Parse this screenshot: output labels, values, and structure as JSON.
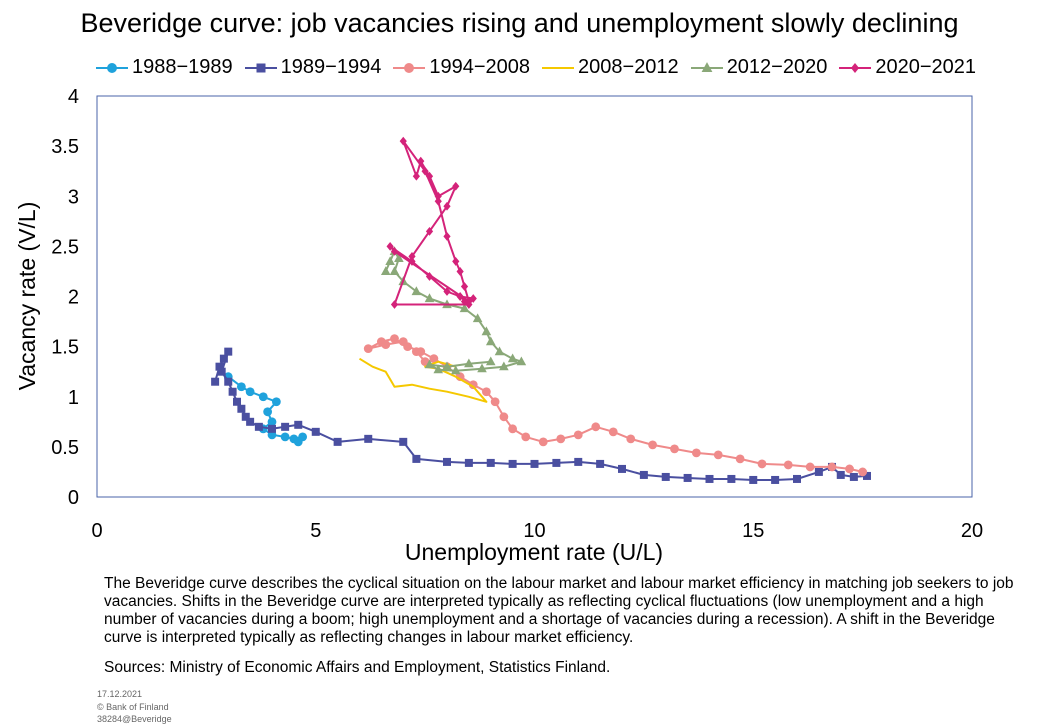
{
  "chart_data": {
    "type": "line",
    "title": "Beveridge curve: job vacancies rising and unemployment slowly declining",
    "xlabel": "Unemployment rate (U/L)",
    "ylabel": "Vacancy rate (V/L)",
    "xlim": [
      0,
      20
    ],
    "ylim": [
      0,
      4
    ],
    "xticks": [
      "0",
      "5",
      "10",
      "15",
      "20"
    ],
    "yticks": [
      "0",
      "0.5",
      "1",
      "1.5",
      "2",
      "2.5",
      "3",
      "3.5",
      "4"
    ],
    "grid": false,
    "legend_position": "top",
    "series": [
      {
        "name": "1988−1989",
        "color": "#1fa2dc",
        "marker": "circle",
        "points": [
          [
            3.0,
            1.2
          ],
          [
            3.3,
            1.1
          ],
          [
            3.5,
            1.05
          ],
          [
            3.8,
            1.0
          ],
          [
            4.1,
            0.95
          ],
          [
            3.9,
            0.85
          ],
          [
            4.0,
            0.75
          ],
          [
            3.8,
            0.68
          ],
          [
            4.0,
            0.62
          ],
          [
            4.3,
            0.6
          ],
          [
            4.5,
            0.58
          ],
          [
            4.7,
            0.6
          ],
          [
            4.6,
            0.55
          ]
        ]
      },
      {
        "name": "1989−1994",
        "color": "#4a4fa0",
        "marker": "square",
        "points": [
          [
            2.7,
            1.15
          ],
          [
            2.8,
            1.3
          ],
          [
            2.9,
            1.38
          ],
          [
            3.0,
            1.45
          ],
          [
            2.85,
            1.25
          ],
          [
            3.0,
            1.15
          ],
          [
            3.1,
            1.05
          ],
          [
            3.2,
            0.95
          ],
          [
            3.3,
            0.88
          ],
          [
            3.4,
            0.8
          ],
          [
            3.5,
            0.75
          ],
          [
            3.7,
            0.7
          ],
          [
            4.0,
            0.68
          ],
          [
            4.3,
            0.7
          ],
          [
            4.6,
            0.72
          ],
          [
            5.0,
            0.65
          ],
          [
            5.5,
            0.55
          ],
          [
            6.2,
            0.58
          ],
          [
            7.0,
            0.55
          ],
          [
            7.3,
            0.38
          ],
          [
            8.0,
            0.35
          ],
          [
            8.5,
            0.34
          ],
          [
            9.0,
            0.34
          ],
          [
            9.5,
            0.33
          ],
          [
            10.0,
            0.33
          ],
          [
            10.5,
            0.34
          ],
          [
            11.0,
            0.35
          ],
          [
            11.5,
            0.33
          ],
          [
            12.0,
            0.28
          ],
          [
            12.5,
            0.22
          ],
          [
            13.0,
            0.2
          ],
          [
            13.5,
            0.19
          ],
          [
            14.0,
            0.18
          ],
          [
            14.5,
            0.18
          ],
          [
            15.0,
            0.17
          ],
          [
            15.5,
            0.17
          ],
          [
            16.0,
            0.18
          ],
          [
            16.5,
            0.25
          ],
          [
            16.8,
            0.3
          ],
          [
            17.0,
            0.22
          ],
          [
            17.3,
            0.2
          ],
          [
            17.6,
            0.21
          ]
        ]
      },
      {
        "name": "1994−2008",
        "color": "#ef8a8a",
        "marker": "circle",
        "points": [
          [
            17.5,
            0.25
          ],
          [
            17.2,
            0.28
          ],
          [
            16.8,
            0.3
          ],
          [
            16.3,
            0.3
          ],
          [
            15.8,
            0.32
          ],
          [
            15.2,
            0.33
          ],
          [
            14.7,
            0.38
          ],
          [
            14.2,
            0.42
          ],
          [
            13.7,
            0.44
          ],
          [
            13.2,
            0.48
          ],
          [
            12.7,
            0.52
          ],
          [
            12.2,
            0.58
          ],
          [
            11.8,
            0.65
          ],
          [
            11.4,
            0.7
          ],
          [
            11.0,
            0.62
          ],
          [
            10.6,
            0.58
          ],
          [
            10.2,
            0.55
          ],
          [
            9.8,
            0.6
          ],
          [
            9.5,
            0.68
          ],
          [
            9.3,
            0.8
          ],
          [
            9.1,
            0.95
          ],
          [
            8.9,
            1.05
          ],
          [
            8.6,
            1.12
          ],
          [
            8.3,
            1.2
          ],
          [
            8.0,
            1.3
          ],
          [
            7.7,
            1.38
          ],
          [
            7.4,
            1.45
          ],
          [
            7.1,
            1.5
          ],
          [
            6.8,
            1.58
          ],
          [
            6.5,
            1.55
          ],
          [
            6.2,
            1.48
          ],
          [
            6.6,
            1.52
          ],
          [
            7.0,
            1.55
          ],
          [
            7.3,
            1.45
          ],
          [
            7.5,
            1.35
          ]
        ]
      },
      {
        "name": "2008−2012",
        "color": "#f5c800",
        "marker": "none",
        "points": [
          [
            6.0,
            1.38
          ],
          [
            6.3,
            1.3
          ],
          [
            6.6,
            1.25
          ],
          [
            6.8,
            1.1
          ],
          [
            7.2,
            1.12
          ],
          [
            7.6,
            1.08
          ],
          [
            8.0,
            1.05
          ],
          [
            8.5,
            1.0
          ],
          [
            8.9,
            0.95
          ],
          [
            8.6,
            1.1
          ],
          [
            8.2,
            1.2
          ],
          [
            7.8,
            1.28
          ],
          [
            7.5,
            1.3
          ],
          [
            7.8,
            1.35
          ],
          [
            8.2,
            1.3
          ]
        ]
      },
      {
        "name": "2012−2020",
        "color": "#8aa878",
        "marker": "triangle",
        "points": [
          [
            6.6,
            2.25
          ],
          [
            6.7,
            2.35
          ],
          [
            6.8,
            2.45
          ],
          [
            6.9,
            2.38
          ],
          [
            6.8,
            2.25
          ],
          [
            7.0,
            2.15
          ],
          [
            7.3,
            2.05
          ],
          [
            7.6,
            1.98
          ],
          [
            8.0,
            1.92
          ],
          [
            8.4,
            1.88
          ],
          [
            8.7,
            1.78
          ],
          [
            8.9,
            1.65
          ],
          [
            9.0,
            1.55
          ],
          [
            9.2,
            1.45
          ],
          [
            9.5,
            1.38
          ],
          [
            9.7,
            1.35
          ],
          [
            9.3,
            1.3
          ],
          [
            8.8,
            1.28
          ],
          [
            8.2,
            1.26
          ],
          [
            7.8,
            1.27
          ],
          [
            7.6,
            1.32
          ],
          [
            8.0,
            1.3
          ],
          [
            8.5,
            1.33
          ],
          [
            9.0,
            1.35
          ]
        ]
      },
      {
        "name": "2020−2021",
        "color": "#d4237a",
        "marker": "diamond",
        "points": [
          [
            8.4,
            1.95
          ],
          [
            8.6,
            1.98
          ],
          [
            8.3,
            2.0
          ],
          [
            8.5,
            1.92
          ],
          [
            6.8,
            1.92
          ],
          [
            7.2,
            2.4
          ],
          [
            7.6,
            2.65
          ],
          [
            8.0,
            2.9
          ],
          [
            8.2,
            3.1
          ],
          [
            7.8,
            3.0
          ],
          [
            7.6,
            3.2
          ],
          [
            7.4,
            3.35
          ],
          [
            7.3,
            3.2
          ],
          [
            7.0,
            3.55
          ],
          [
            7.5,
            3.25
          ],
          [
            7.8,
            2.95
          ],
          [
            8.0,
            2.6
          ],
          [
            8.2,
            2.35
          ],
          [
            8.3,
            2.25
          ],
          [
            8.4,
            2.1
          ],
          [
            8.5,
            1.95
          ],
          [
            6.8,
            2.45
          ],
          [
            6.7,
            2.5
          ],
          [
            7.2,
            2.35
          ],
          [
            7.6,
            2.2
          ],
          [
            8.0,
            2.05
          ],
          [
            8.3,
            2.0
          ]
        ]
      }
    ]
  },
  "text": {
    "description": "The Beveridge curve describes the cyclical situation on the labour market and labour market efficiency in matching job seekers to job vacancies. Shifts in the Beveridge curve are interpreted typically as reflecting cyclical fluctuations (low unemployment and a high number of vacancies during a boom; high unemployment and a shortage of vacancies during a recession). A shift in the Beveridge curve is interpreted typically as reflecting changes in labour market efficiency.",
    "sources": "Sources: Ministry of Economic Affairs and Employment, Statistics Finland.",
    "footer_date": "17.12.2021",
    "footer_copyright": "© Bank of Finland",
    "footer_code": "38284@Beveridge"
  }
}
